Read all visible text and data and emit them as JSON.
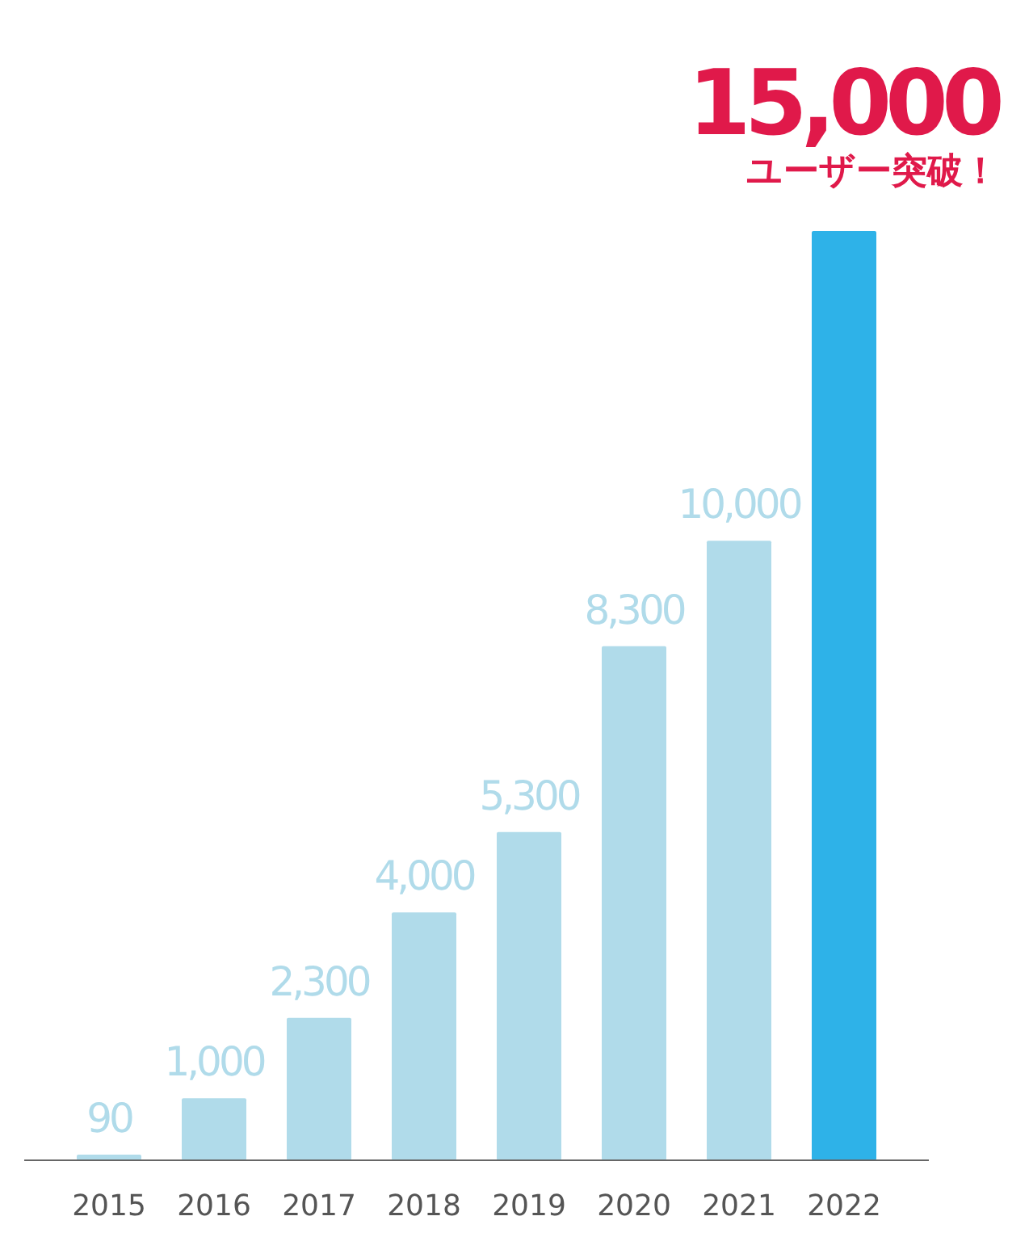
{
  "chart_data": {
    "type": "bar",
    "categories": [
      "2015",
      "2016",
      "2017",
      "2018",
      "2019",
      "2020",
      "2021",
      "2022"
    ],
    "values": [
      90,
      1000,
      2300,
      4000,
      5300,
      8300,
      10000,
      15000
    ],
    "colors": [
      "#b0dbea",
      "#b0dbea",
      "#b0dbea",
      "#b0dbea",
      "#b0dbea",
      "#b0dbea",
      "#b0dbea",
      "#2eb2e8"
    ],
    "value_labels": [
      "90",
      "1,000",
      "2,300",
      "4,000",
      "5,300",
      "8,300",
      "10,000",
      "15,000"
    ],
    "ylim": [
      0,
      15000
    ],
    "tick_labels": "x",
    "annotations": [
      {
        "text": "ユーザー突破！",
        "x": "2022",
        "y": 15000
      }
    ]
  }
}
